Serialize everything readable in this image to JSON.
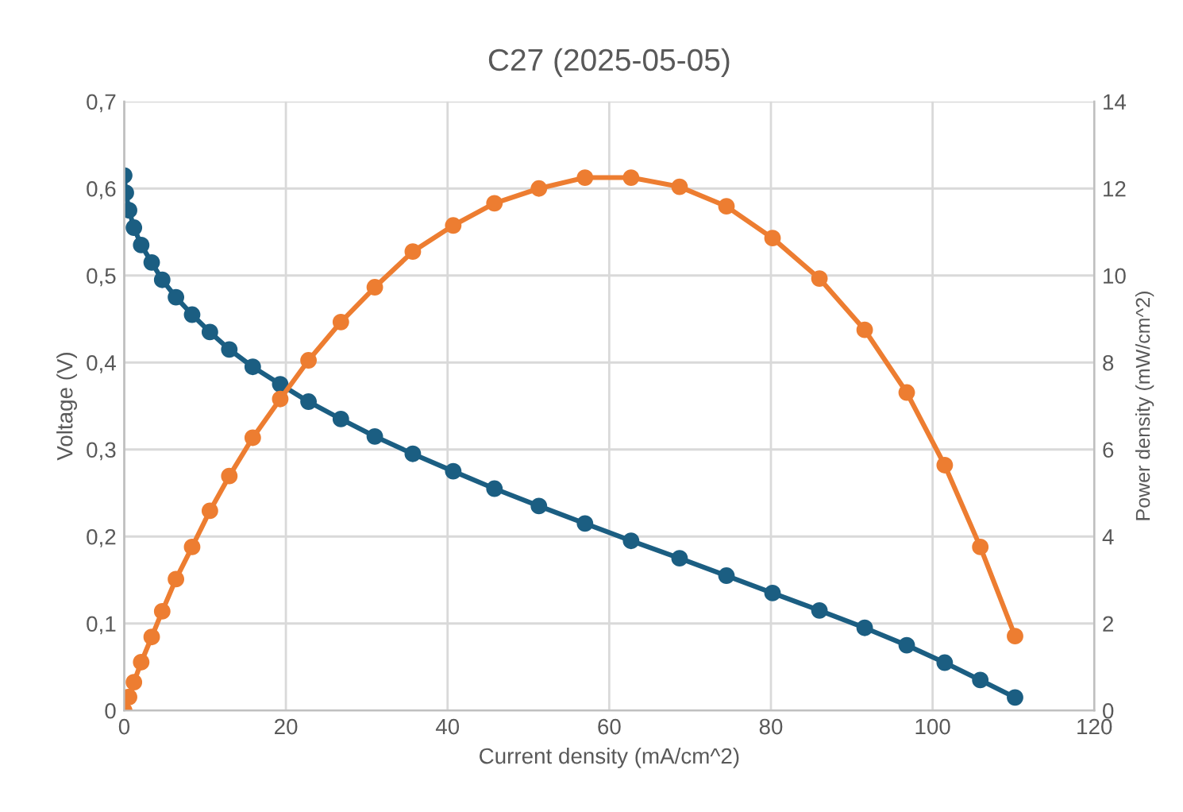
{
  "chart_data": {
    "type": "line",
    "title": "C27 (2025-05-05)",
    "xlabel": "Current density (mA/cm^2)",
    "ylabel": "Voltage (V)",
    "y2label": "Power density (mW/cm^2)",
    "x": [
      0,
      0.2,
      0.6,
      1.2,
      2.1,
      3.4,
      4.7,
      6.4,
      8.4,
      10.6,
      13.0,
      15.9,
      19.3,
      22.8,
      26.8,
      31.0,
      35.7,
      40.7,
      45.8,
      51.3,
      57.0,
      62.7,
      68.7,
      74.5,
      80.2,
      86.0,
      91.6,
      96.8,
      101.5,
      105.9,
      110.2
    ],
    "series": [
      {
        "color": "#1b5e82",
        "values": [
          0.615,
          0.595,
          0.575,
          0.555,
          0.535,
          0.515,
          0.495,
          0.475,
          0.455,
          0.435,
          0.415,
          0.395,
          0.375,
          0.355,
          0.335,
          0.315,
          0.295,
          0.275,
          0.255,
          0.235,
          0.215,
          0.195,
          0.175,
          0.155,
          0.135,
          0.115,
          0.095,
          0.075,
          0.055,
          0.035,
          0.015
        ]
      },
      {
        "color": "#ed7d31",
        "axis": "y2",
        "values": [
          0,
          null,
          0.31,
          0.65,
          1.11,
          1.69,
          2.28,
          3.02,
          3.76,
          4.59,
          5.39,
          6.27,
          7.16,
          8.05,
          8.93,
          9.73,
          10.55,
          11.15,
          11.66,
          12.0,
          12.25,
          12.25,
          12.04,
          11.59,
          10.86,
          9.93,
          8.75,
          7.31,
          5.64,
          3.76,
          1.71
        ]
      }
    ],
    "xlim": [
      0,
      120
    ],
    "xticks": [
      0,
      20,
      40,
      60,
      80,
      100,
      120
    ],
    "ylim": [
      0,
      0.7
    ],
    "yticks": [
      0,
      {
        "value": 0.1,
        "label": "0,1"
      },
      {
        "value": 0.2,
        "label": "0,2"
      },
      {
        "value": 0.3,
        "label": "0,3"
      },
      {
        "value": 0.4,
        "label": "0,4"
      },
      {
        "value": 0.5,
        "label": "0,5"
      },
      {
        "value": 0.6,
        "label": "0,6"
      },
      {
        "value": 0.7,
        "label": "0,7"
      }
    ],
    "y2lim": [
      0,
      14
    ],
    "y2ticks": [
      0,
      2,
      4,
      6,
      8,
      10,
      12,
      14
    ],
    "grid": true,
    "marker": "circle",
    "line_style": "solid",
    "legend": false
  }
}
